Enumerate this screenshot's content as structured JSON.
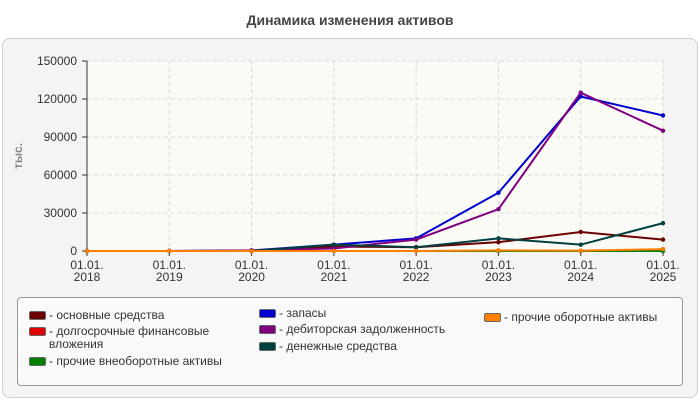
{
  "chart_data": {
    "type": "line",
    "title": "Динамика изменения активов",
    "ylabel": "тыс.",
    "xlabel": "",
    "ylim": [
      0,
      150000
    ],
    "yticks": [
      "0",
      "30000",
      "60000",
      "90000",
      "120000",
      "150000"
    ],
    "ytick_values": [
      0,
      30000,
      60000,
      90000,
      120000,
      150000
    ],
    "categories": [
      [
        "01.01.",
        "2018"
      ],
      [
        "01.01.",
        "2019"
      ],
      [
        "01.01.",
        "2020"
      ],
      [
        "01.01.",
        "2021"
      ],
      [
        "01.01.",
        "2022"
      ],
      [
        "01.01.",
        "2023"
      ],
      [
        "01.01.",
        "2024"
      ],
      [
        "01.01.",
        "2025"
      ]
    ],
    "grid": true,
    "legend_position": "bottom",
    "series": [
      {
        "name": "- основные средства",
        "color": "#6b0000",
        "values": [
          0,
          0,
          0,
          3500,
          3000,
          7000,
          15000,
          9000
        ]
      },
      {
        "name": "- долгосрочные финансовые вложения",
        "color": "#e00000",
        "values": [
          0,
          0,
          0,
          0,
          0,
          0,
          0,
          0
        ]
      },
      {
        "name": "- прочие внеоборотные активы",
        "color": "#008000",
        "values": [
          0,
          0,
          0,
          0,
          0,
          0,
          0,
          0
        ]
      },
      {
        "name": "- запасы",
        "color": "#0000d0",
        "values": [
          0,
          0,
          500,
          5000,
          10000,
          46000,
          122000,
          107000
        ]
      },
      {
        "name": "- дебиторская задолженность",
        "color": "#800080",
        "values": [
          0,
          0,
          500,
          2000,
          9000,
          33000,
          125000,
          95000
        ]
      },
      {
        "name": "- денежные средства",
        "color": "#004040",
        "values": [
          0,
          0,
          0,
          5000,
          3000,
          10000,
          5000,
          22000
        ]
      },
      {
        "name": "- прочие оборотные активы",
        "color": "#ff8000",
        "values": [
          0,
          0,
          0,
          0,
          0,
          500,
          300,
          1500
        ]
      }
    ]
  }
}
